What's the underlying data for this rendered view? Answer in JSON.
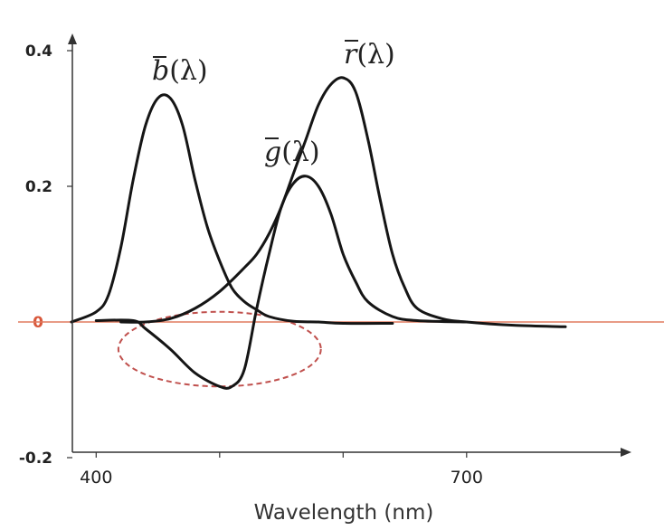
{
  "chart_data": {
    "type": "line",
    "xlabel": "Wavelength (nm)",
    "ylabel": "",
    "xlim": [
      380,
      780
    ],
    "ylim": [
      -0.2,
      0.4
    ],
    "x_ticks": [
      {
        "value": 400,
        "label": "400"
      },
      {
        "value": 500,
        "label": ""
      },
      {
        "value": 600,
        "label": ""
      },
      {
        "value": 700,
        "label": "700"
      }
    ],
    "y_ticks": [
      {
        "value": 0.4,
        "label": "0.4"
      },
      {
        "value": 0.2,
        "label": "0.2"
      },
      {
        "value": 0.0,
        "label": "0"
      },
      {
        "value": -0.2,
        "label": "-0.2"
      }
    ],
    "zero_line_color": "#e07a5f",
    "zero_label_color": "#d8573a",
    "highlight": {
      "shape": "ellipse",
      "style": "dashed",
      "color": "#c0504d",
      "cx": 500,
      "cy": -0.04,
      "rx": 82,
      "ry": 0.055
    },
    "series": [
      {
        "name": "b(λ)",
        "label_parts": {
          "bar": "b",
          "rest": "(λ)"
        },
        "x": [
          380,
          400,
          410,
          420,
          430,
          440,
          450,
          460,
          470,
          480,
          490,
          500,
          510,
          520,
          530,
          540,
          560,
          580,
          600,
          640
        ],
        "y": [
          0.0,
          0.015,
          0.04,
          0.11,
          0.21,
          0.29,
          0.33,
          0.33,
          0.29,
          0.21,
          0.14,
          0.09,
          0.05,
          0.03,
          0.018,
          0.008,
          0.001,
          0.0,
          -0.002,
          -0.002
        ]
      },
      {
        "name": "g(λ)",
        "label_parts": {
          "bar": "g",
          "rest": "(λ)"
        },
        "x": [
          400,
          430,
          440,
          460,
          480,
          500,
          510,
          520,
          530,
          540,
          550,
          560,
          570,
          580,
          590,
          600,
          610,
          620,
          640,
          660,
          700
        ],
        "y": [
          0.002,
          0.002,
          -0.01,
          -0.04,
          -0.075,
          -0.095,
          -0.095,
          -0.07,
          0.02,
          0.1,
          0.17,
          0.205,
          0.215,
          0.2,
          0.16,
          0.1,
          0.06,
          0.03,
          0.008,
          0.002,
          0.0
        ]
      },
      {
        "name": "r(λ)",
        "label_parts": {
          "bar": "r",
          "rest": "(λ)"
        },
        "x": [
          420,
          440,
          460,
          480,
          500,
          520,
          530,
          540,
          550,
          560,
          570,
          580,
          590,
          600,
          610,
          620,
          630,
          640,
          650,
          660,
          680,
          700,
          740,
          780
        ],
        "y": [
          0.0,
          0.0,
          0.005,
          0.02,
          0.045,
          0.08,
          0.1,
          0.13,
          0.17,
          0.22,
          0.27,
          0.32,
          0.35,
          0.36,
          0.34,
          0.27,
          0.18,
          0.1,
          0.05,
          0.02,
          0.005,
          0.0,
          -0.005,
          -0.007
        ]
      }
    ]
  }
}
